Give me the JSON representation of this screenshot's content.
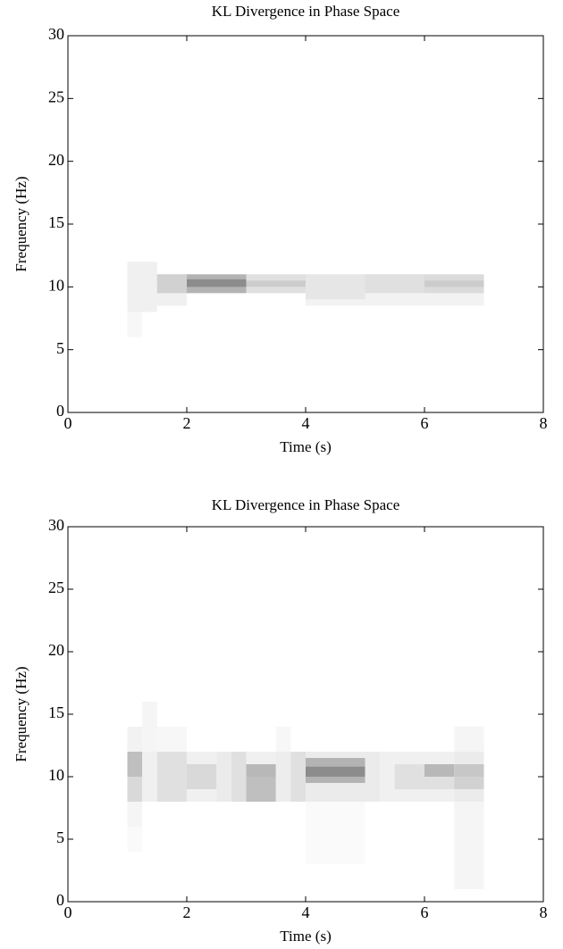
{
  "chart_data": [
    {
      "type": "heatmap",
      "title": "KL Divergence in Phase Space",
      "x_label": "Time (s)",
      "y_label": "Frequency (Hz)",
      "xlim": [
        0,
        8
      ],
      "ylim": [
        0,
        30
      ],
      "xticks": [
        0,
        2,
        4,
        6,
        8
      ],
      "yticks": [
        0,
        5,
        10,
        15,
        20,
        25,
        30
      ],
      "cells": [
        {
          "t": [
            1,
            1.25
          ],
          "f": [
            6,
            8
          ],
          "v": 0.03
        },
        {
          "t": [
            1,
            1.5
          ],
          "f": [
            8,
            12
          ],
          "v": 0.06
        },
        {
          "t": [
            1.5,
            2
          ],
          "f": [
            8.5,
            11
          ],
          "v": 0.06
        },
        {
          "t": [
            1.5,
            2
          ],
          "f": [
            9.5,
            11
          ],
          "v": 0.18
        },
        {
          "t": [
            2,
            3
          ],
          "f": [
            9.5,
            11
          ],
          "v": 0.3
        },
        {
          "t": [
            2,
            3
          ],
          "f": [
            10,
            10.6
          ],
          "v": 0.45
        },
        {
          "t": [
            3,
            4
          ],
          "f": [
            9.5,
            11
          ],
          "v": 0.12
        },
        {
          "t": [
            3,
            4
          ],
          "f": [
            10,
            10.5
          ],
          "v": 0.2
        },
        {
          "t": [
            4,
            5
          ],
          "f": [
            8.5,
            11
          ],
          "v": 0.05
        },
        {
          "t": [
            4,
            5
          ],
          "f": [
            9,
            11
          ],
          "v": 0.1
        },
        {
          "t": [
            5,
            6
          ],
          "f": [
            8.5,
            11
          ],
          "v": 0.05
        },
        {
          "t": [
            5,
            6
          ],
          "f": [
            9.5,
            11
          ],
          "v": 0.12
        },
        {
          "t": [
            6,
            7
          ],
          "f": [
            8.5,
            11
          ],
          "v": 0.05
        },
        {
          "t": [
            6,
            7
          ],
          "f": [
            9.5,
            11
          ],
          "v": 0.14
        },
        {
          "t": [
            6,
            7
          ],
          "f": [
            10,
            10.5
          ],
          "v": 0.2
        }
      ]
    },
    {
      "type": "heatmap",
      "title": "KL Divergence in Phase Space",
      "x_label": "Time (s)",
      "y_label": "Frequency (Hz)",
      "xlim": [
        0,
        8
      ],
      "ylim": [
        0,
        30
      ],
      "xticks": [
        0,
        2,
        4,
        6,
        8
      ],
      "yticks": [
        0,
        5,
        10,
        15,
        20,
        25,
        30
      ],
      "cells": [
        {
          "t": [
            1,
            1.25
          ],
          "f": [
            4,
            6
          ],
          "v": 0.02
        },
        {
          "t": [
            1,
            1.25
          ],
          "f": [
            6,
            8
          ],
          "v": 0.04
        },
        {
          "t": [
            1,
            1.25
          ],
          "f": [
            12,
            14
          ],
          "v": 0.05
        },
        {
          "t": [
            1,
            1.25
          ],
          "f": [
            8,
            10
          ],
          "v": 0.15
        },
        {
          "t": [
            1,
            1.25
          ],
          "f": [
            10,
            12
          ],
          "v": 0.25
        },
        {
          "t": [
            1.25,
            1.5
          ],
          "f": [
            12,
            16
          ],
          "v": 0.04
        },
        {
          "t": [
            1.25,
            1.5
          ],
          "f": [
            8,
            12
          ],
          "v": 0.06
        },
        {
          "t": [
            1.5,
            2
          ],
          "f": [
            12,
            14
          ],
          "v": 0.03
        },
        {
          "t": [
            1.5,
            2
          ],
          "f": [
            8,
            12
          ],
          "v": 0.12
        },
        {
          "t": [
            2,
            2.5
          ],
          "f": [
            8,
            12
          ],
          "v": 0.06
        },
        {
          "t": [
            2,
            2.5
          ],
          "f": [
            9,
            11
          ],
          "v": 0.15
        },
        {
          "t": [
            2.5,
            2.75
          ],
          "f": [
            8,
            12
          ],
          "v": 0.08
        },
        {
          "t": [
            2.75,
            3
          ],
          "f": [
            8,
            12
          ],
          "v": 0.12
        },
        {
          "t": [
            3,
            3.5
          ],
          "f": [
            11,
            12
          ],
          "v": 0.06
        },
        {
          "t": [
            3,
            3.5
          ],
          "f": [
            8,
            10
          ],
          "v": 0.25
        },
        {
          "t": [
            3,
            3.5
          ],
          "f": [
            10,
            11
          ],
          "v": 0.28
        },
        {
          "t": [
            3.5,
            3.75
          ],
          "f": [
            12,
            14
          ],
          "v": 0.03
        },
        {
          "t": [
            3.5,
            3.75
          ],
          "f": [
            8,
            12
          ],
          "v": 0.07
        },
        {
          "t": [
            3.75,
            4
          ],
          "f": [
            8,
            12
          ],
          "v": 0.12
        },
        {
          "t": [
            4,
            5
          ],
          "f": [
            3,
            8
          ],
          "v": 0.02
        },
        {
          "t": [
            4,
            5
          ],
          "f": [
            8,
            12
          ],
          "v": 0.08
        },
        {
          "t": [
            4,
            5
          ],
          "f": [
            9.5,
            11.5
          ],
          "v": 0.3
        },
        {
          "t": [
            4,
            5
          ],
          "f": [
            10,
            10.8
          ],
          "v": 0.45
        },
        {
          "t": [
            5,
            5.25
          ],
          "f": [
            8,
            12
          ],
          "v": 0.08
        },
        {
          "t": [
            5.25,
            5.5
          ],
          "f": [
            8,
            12
          ],
          "v": 0.06
        },
        {
          "t": [
            5.5,
            6
          ],
          "f": [
            8,
            12
          ],
          "v": 0.06
        },
        {
          "t": [
            5.5,
            6
          ],
          "f": [
            9,
            11
          ],
          "v": 0.12
        },
        {
          "t": [
            6,
            6.5
          ],
          "f": [
            8,
            12
          ],
          "v": 0.06
        },
        {
          "t": [
            6,
            6.5
          ],
          "f": [
            9,
            10
          ],
          "v": 0.12
        },
        {
          "t": [
            6,
            6.5
          ],
          "f": [
            10,
            11
          ],
          "v": 0.28
        },
        {
          "t": [
            6.5,
            7
          ],
          "f": [
            1,
            8
          ],
          "v": 0.04
        },
        {
          "t": [
            6.5,
            7
          ],
          "f": [
            12,
            14
          ],
          "v": 0.04
        },
        {
          "t": [
            6.5,
            7
          ],
          "f": [
            8,
            12
          ],
          "v": 0.08
        },
        {
          "t": [
            6.5,
            7
          ],
          "f": [
            9,
            10
          ],
          "v": 0.18
        },
        {
          "t": [
            6.5,
            7
          ],
          "f": [
            10,
            11
          ],
          "v": 0.22
        }
      ]
    }
  ]
}
